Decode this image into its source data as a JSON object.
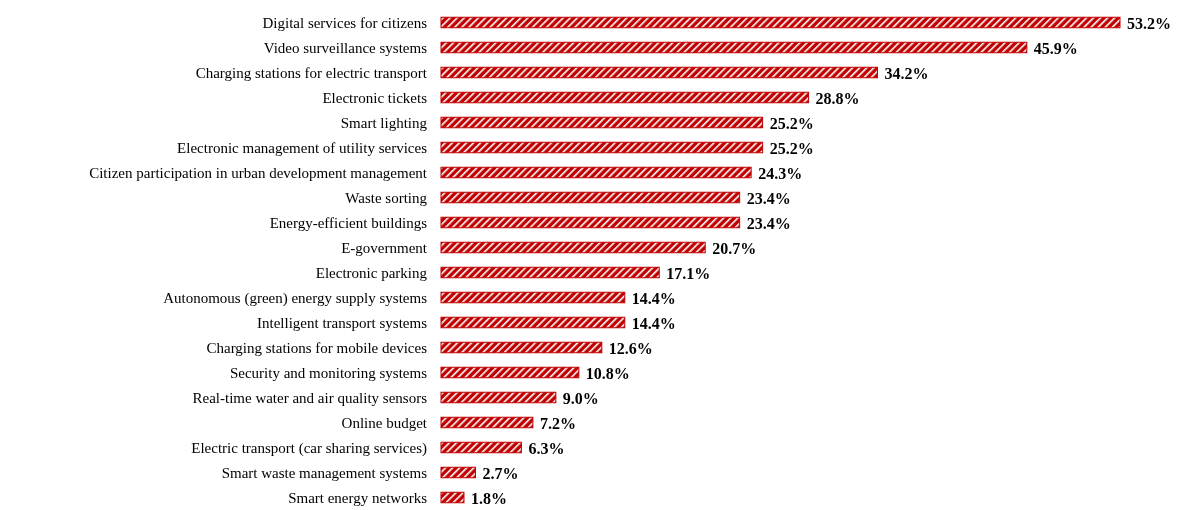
{
  "chart_data": {
    "type": "bar",
    "orientation": "horizontal",
    "categories": [
      "Digital services for citizens",
      "Video surveillance systems",
      "Charging stations for electric transport",
      "Electronic tickets",
      "Smart lighting",
      "Electronic management of utility services",
      "Citizen participation in urban development management",
      "Waste sorting",
      "Energy-efficient buildings",
      "E-government",
      "Electronic parking",
      "Autonomous (green) energy supply systems",
      "Intelligent transport systems",
      "Charging stations for mobile devices",
      "Security and monitoring systems",
      "Real-time water and air quality sensors",
      "Online budget",
      "Electric transport (car sharing services)",
      "Smart waste management systems",
      "Smart energy networks"
    ],
    "values": [
      53.2,
      45.9,
      34.2,
      28.8,
      25.2,
      25.2,
      24.3,
      23.4,
      23.4,
      20.7,
      17.1,
      14.4,
      14.4,
      12.6,
      10.8,
      9.0,
      7.2,
      6.3,
      2.7,
      1.8
    ],
    "value_labels": [
      "53.2%",
      "45.9%",
      "34.2%",
      "28.8%",
      "25.2%",
      "25.2%",
      "24.3%",
      "23.4%",
      "23.4%",
      "20.7%",
      "17.1%",
      "14.4%",
      "14.4%",
      "12.6%",
      "10.8%",
      "9.0%",
      "7.2%",
      "6.3%",
      "2.7%",
      "1.8%"
    ],
    "color": "#c00000",
    "xlim": [
      0,
      53.2
    ]
  }
}
